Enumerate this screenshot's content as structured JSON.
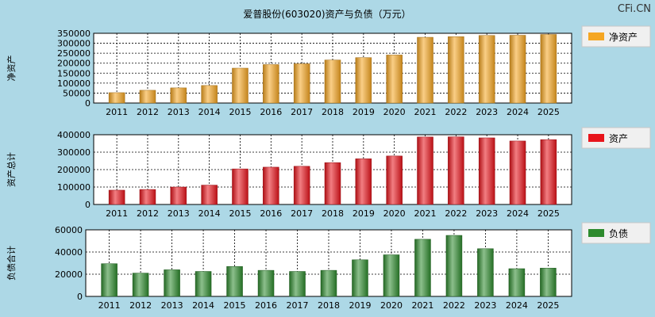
{
  "title": "爱普股份(603020)资产与负债（万元）",
  "watermark": "CFi.CN",
  "chart_data": [
    {
      "type": "bar",
      "ylabel": "净资产",
      "legend": "净资产",
      "color": "#f5a623",
      "categories": [
        "2011",
        "2012",
        "2013",
        "2014",
        "2015",
        "2016",
        "2017",
        "2018",
        "2019",
        "2020",
        "2021",
        "2022",
        "2023",
        "2024",
        "2025"
      ],
      "values": [
        52000,
        64000,
        76000,
        88000,
        175000,
        193000,
        197000,
        216000,
        228000,
        241000,
        330000,
        333000,
        339000,
        340000,
        344000
      ],
      "ylim": [
        0,
        350000
      ],
      "yticks": [
        0,
        50000,
        100000,
        150000,
        200000,
        250000,
        300000,
        350000
      ],
      "legend_position": "right",
      "grid": true
    },
    {
      "type": "bar",
      "ylabel": "资产总计",
      "legend": "资产",
      "color": "#e8141b",
      "categories": [
        "2011",
        "2012",
        "2013",
        "2014",
        "2015",
        "2016",
        "2017",
        "2018",
        "2019",
        "2020",
        "2021",
        "2022",
        "2023",
        "2024",
        "2025"
      ],
      "values": [
        82000,
        86000,
        100000,
        111000,
        204000,
        214000,
        219000,
        240000,
        262000,
        278000,
        387000,
        388000,
        382000,
        364000,
        372000
      ],
      "ylim": [
        0,
        400000
      ],
      "yticks": [
        0,
        100000,
        200000,
        300000,
        400000
      ],
      "legend_position": "right",
      "grid": true
    },
    {
      "type": "bar",
      "ylabel": "负债合计",
      "legend": "负债",
      "color": "#2e8b2e",
      "categories": [
        "2011",
        "2012",
        "2013",
        "2014",
        "2015",
        "2016",
        "2017",
        "2018",
        "2019",
        "2020",
        "2021",
        "2022",
        "2023",
        "2024",
        "2025"
      ],
      "values": [
        29500,
        21000,
        24000,
        22500,
        27000,
        23500,
        22500,
        23500,
        33000,
        37500,
        51500,
        55000,
        43000,
        25000,
        25500
      ],
      "ylim": [
        0,
        60000
      ],
      "yticks": [
        0,
        20000,
        40000,
        60000
      ],
      "legend_position": "right",
      "grid": true
    }
  ]
}
